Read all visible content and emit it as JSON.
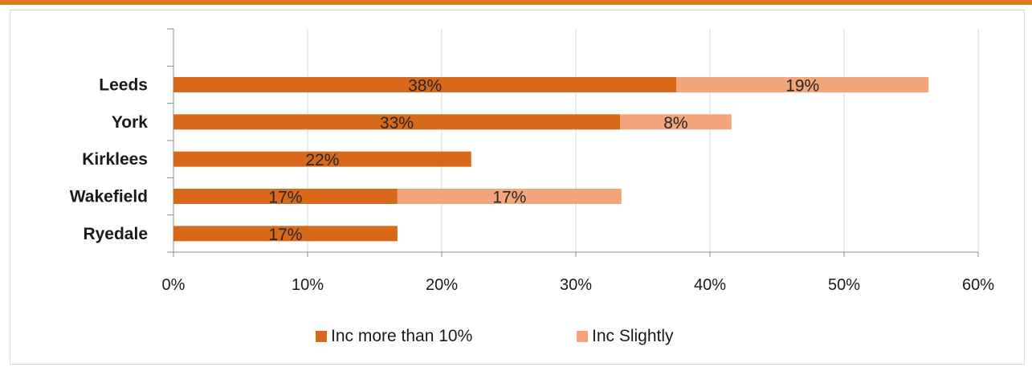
{
  "colors": {
    "top_rule": "#e07b22",
    "series_1": "#d9691a",
    "series_2": "#f2a47a",
    "axis": "#8c8c8c",
    "grid": "#d9d9d9"
  },
  "chart_data": {
    "type": "bar",
    "orientation": "horizontal",
    "stacked": true,
    "categories": [
      "Leeds",
      "York",
      "Kirklees",
      "Wakefield",
      "Ryedale"
    ],
    "series": [
      {
        "name": "Inc more than 10%",
        "values": [
          37.5,
          33.3,
          22.2,
          16.7,
          16.7
        ],
        "labels": [
          "38%",
          "33%",
          "22%",
          "17%",
          "17%"
        ]
      },
      {
        "name": "Inc Slightly",
        "values": [
          18.8,
          8.3,
          0,
          16.7,
          0
        ],
        "labels": [
          "19%",
          "8%",
          "",
          "17%",
          ""
        ]
      }
    ],
    "xlim": [
      0,
      60
    ],
    "x_ticks": [
      "0%",
      "10%",
      "20%",
      "30%",
      "40%",
      "50%",
      "60%"
    ],
    "grid": "vertical",
    "legend_position": "bottom"
  }
}
